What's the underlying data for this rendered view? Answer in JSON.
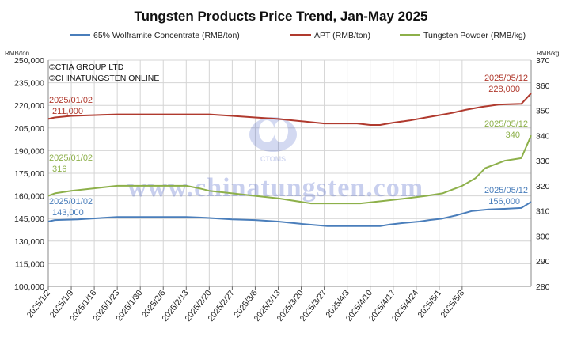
{
  "chart_data": {
    "type": "line",
    "title": "Tungsten Products Price Trend, Jan-May 2025",
    "left_axis": {
      "unit": "RMB/ton",
      "ylim": [
        100000,
        250000
      ],
      "ticks": [
        "100,000",
        "115,000",
        "130,000",
        "145,000",
        "160,000",
        "175,000",
        "190,000",
        "205,000",
        "220,000",
        "235,000",
        "250,000"
      ]
    },
    "right_axis": {
      "unit": "RMB/kg",
      "ylim": [
        280,
        370
      ],
      "ticks": [
        "280",
        "290",
        "300",
        "310",
        "320",
        "330",
        "340",
        "350",
        "360",
        "370"
      ]
    },
    "x_ticks": [
      "2025/1/2",
      "2025/1/9",
      "2025/1/16",
      "2025/1/23",
      "2025/1/30",
      "2025/2/6",
      "2025/2/13",
      "2025/2/20",
      "2025/2/27",
      "2025/3/6",
      "2025/3/13",
      "2025/3/20",
      "2025/3/27",
      "2025/4/3",
      "2025/4/10",
      "2025/4/17",
      "2025/4/24",
      "2025/5/1",
      "2025/5/8"
    ],
    "x_range_days": [
      0,
      130
    ],
    "grid": true,
    "legend_position": "top",
    "series": [
      {
        "name": "65% Wolframite Concentrate (RMB/ton)",
        "axis": "left",
        "color": "#4a7ebb",
        "points": [
          [
            0,
            143000
          ],
          [
            2,
            144000
          ],
          [
            9,
            144500
          ],
          [
            21,
            146000
          ],
          [
            42,
            146000
          ],
          [
            48,
            145500
          ],
          [
            56,
            144500
          ],
          [
            63,
            144000
          ],
          [
            70,
            143000
          ],
          [
            77,
            141500
          ],
          [
            85,
            140000
          ],
          [
            95,
            140000
          ],
          [
            101,
            140000
          ],
          [
            104,
            141000
          ],
          [
            108,
            142000
          ],
          [
            113,
            143000
          ],
          [
            116,
            144000
          ],
          [
            120,
            145000
          ],
          [
            124,
            147000
          ],
          [
            129,
            150000
          ],
          [
            134,
            151000
          ],
          [
            140,
            151500
          ],
          [
            144,
            152000
          ],
          [
            147,
            156000
          ]
        ]
      },
      {
        "name": "APT (RMB/ton)",
        "axis": "left",
        "color": "#b03a2e",
        "points": [
          [
            0,
            211000
          ],
          [
            2,
            212000
          ],
          [
            7,
            213000
          ],
          [
            21,
            214000
          ],
          [
            49,
            214000
          ],
          [
            56,
            213000
          ],
          [
            63,
            212000
          ],
          [
            70,
            211000
          ],
          [
            77,
            209500
          ],
          [
            84,
            208000
          ],
          [
            94,
            208000
          ],
          [
            98,
            207000
          ],
          [
            101,
            207000
          ],
          [
            105,
            208500
          ],
          [
            110,
            210000
          ],
          [
            115,
            212000
          ],
          [
            119,
            213500
          ],
          [
            123,
            215000
          ],
          [
            127,
            217000
          ],
          [
            132,
            219000
          ],
          [
            137,
            220500
          ],
          [
            144,
            221000
          ],
          [
            147,
            228000
          ]
        ]
      },
      {
        "name": "Tungsten Powder (RMB/kg)",
        "axis": "right",
        "color": "#8db04a",
        "points": [
          [
            0,
            316
          ],
          [
            2,
            317
          ],
          [
            7,
            318
          ],
          [
            21,
            320
          ],
          [
            42,
            320
          ],
          [
            46,
            319
          ],
          [
            49,
            318
          ],
          [
            56,
            317
          ],
          [
            63,
            316
          ],
          [
            70,
            315
          ],
          [
            80,
            313
          ],
          [
            95,
            313
          ],
          [
            102,
            314
          ],
          [
            109,
            315
          ],
          [
            115,
            316
          ],
          [
            120,
            317
          ],
          [
            126,
            320
          ],
          [
            130,
            323
          ],
          [
            133,
            327
          ],
          [
            139,
            330
          ],
          [
            144,
            331
          ],
          [
            147,
            340
          ]
        ]
      }
    ],
    "annotations": [
      {
        "series": 1,
        "date": "2025/01/02",
        "value": "211,000"
      },
      {
        "series": 1,
        "date": "2025/05/12",
        "value": "228,000"
      },
      {
        "series": 2,
        "date": "2025/01/02",
        "value": "316"
      },
      {
        "series": 2,
        "date": "2025/05/12",
        "value": "340"
      },
      {
        "series": 0,
        "date": "2025/01/02",
        "value": "143,000"
      },
      {
        "series": 0,
        "date": "2025/05/12",
        "value": "156,000"
      }
    ],
    "copyright": [
      "©CTIA GROUP LTD",
      "©CHINATUNGSTEN ONLINE"
    ],
    "watermark": {
      "text": "www.chinatungsten.com",
      "logo_text": "CTOMS"
    }
  }
}
